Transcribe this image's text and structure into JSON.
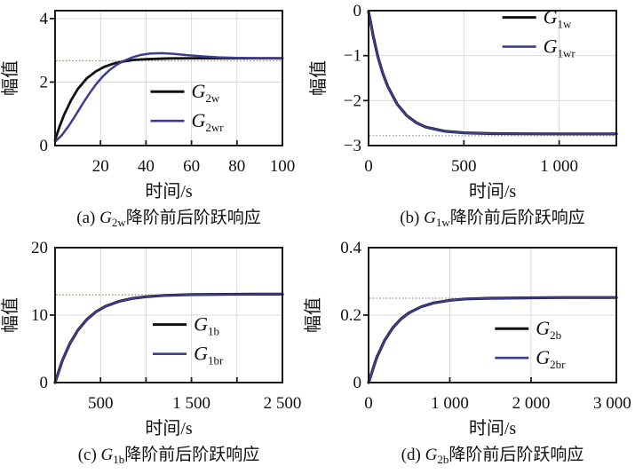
{
  "figure": {
    "background": "#ffffff",
    "frame_color": "#1a1a1a",
    "grid_color": "#d9d9d9",
    "ref_line_color": "#9a9180",
    "text_color": "#111111",
    "curve_black": "#111111",
    "curve_blue": "#3d3d8f"
  },
  "chart_data": [
    {
      "id": "a",
      "type": "line",
      "caption": {
        "prefix": "(a) ",
        "var": "G",
        "var_sub": "2w",
        "suffix": "降阶前后阶跃响应"
      },
      "xlabel": "时间/s",
      "ylabel": "幅值",
      "xlim": [
        0,
        100
      ],
      "ylim": [
        0,
        4.25
      ],
      "grid": true,
      "xticks": [
        {
          "v": 20,
          "label": "20"
        },
        {
          "v": 40,
          "label": "40"
        },
        {
          "v": 60,
          "label": "60"
        },
        {
          "v": 80,
          "label": "80"
        },
        {
          "v": 100,
          "label": "100"
        }
      ],
      "yticks": [
        {
          "v": 0,
          "label": "0"
        },
        {
          "v": 2,
          "label": "2"
        },
        {
          "v": 4,
          "label": "4"
        }
      ],
      "ref_line_y": 2.67,
      "legend": {
        "x": 0.42,
        "y": 0.6,
        "row_gap": 33
      },
      "layout": {
        "left": 62,
        "right": 32,
        "ylabel_dx": 44
      },
      "series": [
        {
          "name": "G",
          "sub": "2w",
          "color": "#111111",
          "width": 2.8,
          "x": [
            0,
            2,
            4,
            7,
            10,
            14,
            18,
            22,
            26,
            30,
            35,
            40,
            50,
            60,
            70,
            85,
            100
          ],
          "y": [
            0.18,
            0.6,
            0.97,
            1.42,
            1.78,
            2.12,
            2.34,
            2.49,
            2.59,
            2.65,
            2.7,
            2.72,
            2.745,
            2.75,
            2.75,
            2.75,
            2.75
          ]
        },
        {
          "name": "G",
          "sub": "2wr",
          "color": "#3d3d8f",
          "width": 2.5,
          "x": [
            0,
            3,
            6,
            9,
            12,
            15,
            18,
            21,
            24,
            27,
            30,
            34,
            38,
            42,
            47,
            52,
            58,
            65,
            72,
            80,
            90,
            100
          ],
          "y": [
            0.12,
            0.33,
            0.62,
            0.95,
            1.3,
            1.63,
            1.93,
            2.18,
            2.38,
            2.54,
            2.66,
            2.78,
            2.86,
            2.9,
            2.91,
            2.89,
            2.85,
            2.81,
            2.78,
            2.76,
            2.75,
            2.75
          ]
        }
      ]
    },
    {
      "id": "b",
      "type": "line",
      "caption": {
        "prefix": "(b) ",
        "var": "G",
        "var_sub": "1w",
        "suffix": "降阶前后阶跃响应"
      },
      "xlabel": "时间/s",
      "ylabel": "幅值",
      "xlim": [
        0,
        1300
      ],
      "ylim": [
        -3,
        0
      ],
      "grid": true,
      "xticks": [
        {
          "v": 0,
          "label": "0"
        },
        {
          "v": 500,
          "label": "500"
        },
        {
          "v": 1000,
          "label": "1 000"
        }
      ],
      "yticks": [
        {
          "v": 0,
          "label": "0"
        },
        {
          "v": -1,
          "label": "−1"
        },
        {
          "v": -2,
          "label": "−2"
        },
        {
          "v": -3,
          "label": "−3"
        }
      ],
      "ref_line_y": -2.78,
      "legend": {
        "x": 0.54,
        "y": 0.05,
        "row_gap": 33
      },
      "layout": {
        "left": 65,
        "right": 6,
        "ylabel_dx": 50
      },
      "series": [
        {
          "name": "G",
          "sub": "1w",
          "color": "#111111",
          "width": 3.2,
          "x": [
            0,
            25,
            50,
            75,
            100,
            150,
            200,
            250,
            300,
            400,
            500,
            650,
            800,
            1000,
            1300
          ],
          "y": [
            -0.02,
            -0.58,
            -1.04,
            -1.4,
            -1.68,
            -2.08,
            -2.33,
            -2.49,
            -2.59,
            -2.68,
            -2.715,
            -2.733,
            -2.738,
            -2.74,
            -2.74
          ]
        },
        {
          "name": "G",
          "sub": "1wr",
          "color": "#3d3d8f",
          "width": 2.2,
          "x": [
            0,
            25,
            50,
            75,
            100,
            150,
            200,
            250,
            300,
            400,
            500,
            650,
            800,
            1000,
            1300
          ],
          "y": [
            -0.02,
            -0.58,
            -1.04,
            -1.4,
            -1.68,
            -2.08,
            -2.33,
            -2.49,
            -2.59,
            -2.68,
            -2.715,
            -2.733,
            -2.738,
            -2.74,
            -2.74
          ]
        }
      ]
    },
    {
      "id": "c",
      "type": "line",
      "caption": {
        "prefix": "(c) ",
        "var": "G",
        "var_sub": "1b",
        "suffix": "降阶前后阶跃响应"
      },
      "xlabel": "时间/s",
      "ylabel": "幅值",
      "xlim": [
        0,
        2500
      ],
      "ylim": [
        0,
        20
      ],
      "grid": true,
      "xticks": [
        {
          "v": 500,
          "label": "500"
        },
        {
          "v": 1000,
          "label": ""
        },
        {
          "v": 1500,
          "label": "1 500"
        },
        {
          "v": 2000,
          "label": ""
        },
        {
          "v": 2500,
          "label": "2 500"
        }
      ],
      "yticks": [
        {
          "v": 0,
          "label": "0"
        },
        {
          "v": 10,
          "label": "10"
        },
        {
          "v": 20,
          "label": "20"
        }
      ],
      "ref_line_y": 13.0,
      "legend": {
        "x": 0.43,
        "y": 0.57,
        "row_gap": 33
      },
      "layout": {
        "left": 62,
        "right": 32,
        "ylabel_dx": 44
      },
      "series": [
        {
          "name": "G",
          "sub": "1b",
          "color": "#111111",
          "width": 3.2,
          "x": [
            0,
            80,
            160,
            250,
            350,
            450,
            550,
            700,
            850,
            1000,
            1200,
            1500,
            1800,
            2200,
            2500
          ],
          "y": [
            0,
            3.27,
            5.71,
            7.75,
            9.35,
            10.5,
            11.27,
            12.02,
            12.47,
            12.73,
            12.92,
            13.04,
            13.08,
            13.1,
            13.1
          ]
        },
        {
          "name": "G",
          "sub": "1br",
          "color": "#3d3d8f",
          "width": 2.2,
          "x": [
            0,
            80,
            160,
            250,
            350,
            450,
            550,
            700,
            850,
            1000,
            1200,
            1500,
            1800,
            2200,
            2500
          ],
          "y": [
            0,
            3.27,
            5.71,
            7.75,
            9.35,
            10.5,
            11.27,
            12.02,
            12.47,
            12.73,
            12.92,
            13.04,
            13.08,
            13.1,
            13.1
          ]
        }
      ]
    },
    {
      "id": "d",
      "type": "line",
      "caption": {
        "prefix": "(d) ",
        "var": "G",
        "var_sub": "2b",
        "suffix": "降阶前后阶跃响应"
      },
      "xlabel": "时间/s",
      "ylabel": "幅值",
      "xlim": [
        0,
        3050
      ],
      "ylim": [
        0,
        0.4
      ],
      "grid": true,
      "xticks": [
        {
          "v": 0,
          "label": "0"
        },
        {
          "v": 1000,
          "label": "1 000"
        },
        {
          "v": 2000,
          "label": "2 000"
        },
        {
          "v": 3000,
          "label": "3 000"
        }
      ],
      "yticks": [
        {
          "v": 0,
          "label": "0"
        },
        {
          "v": 0.2,
          "label": "0.2"
        },
        {
          "v": 0.4,
          "label": "0.4"
        }
      ],
      "ref_line_y": 0.25,
      "legend": {
        "x": 0.51,
        "y": 0.6,
        "row_gap": 33
      },
      "layout": {
        "left": 65,
        "right": 6,
        "ylabel_dx": 56
      },
      "series": [
        {
          "name": "G",
          "sub": "2b",
          "color": "#111111",
          "width": 3.2,
          "x": [
            0,
            100,
            200,
            300,
            400,
            500,
            650,
            800,
            1000,
            1200,
            1500,
            1900,
            2400,
            3050
          ],
          "y": [
            0,
            0.074,
            0.126,
            0.163,
            0.189,
            0.207,
            0.225,
            0.236,
            0.244,
            0.248,
            0.25,
            0.251,
            0.252,
            0.252
          ]
        },
        {
          "name": "G",
          "sub": "2br",
          "color": "#3d3d8f",
          "width": 2.2,
          "x": [
            0,
            100,
            200,
            300,
            400,
            500,
            650,
            800,
            1000,
            1200,
            1500,
            1900,
            2400,
            3050
          ],
          "y": [
            0,
            0.074,
            0.126,
            0.163,
            0.189,
            0.207,
            0.225,
            0.236,
            0.244,
            0.248,
            0.25,
            0.251,
            0.252,
            0.252
          ]
        }
      ]
    }
  ]
}
